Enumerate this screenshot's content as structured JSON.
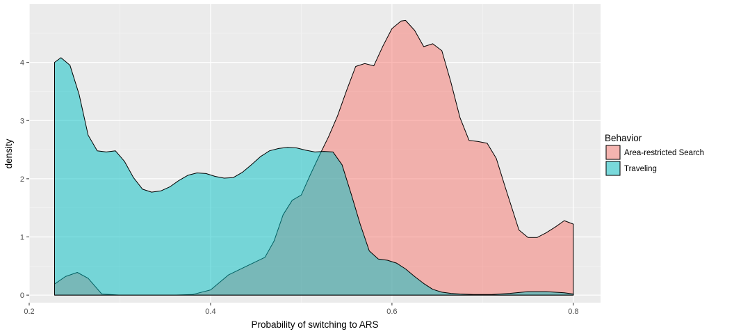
{
  "chart_data": {
    "type": "area",
    "title": "",
    "xlabel": "Probability of switching to ARS",
    "ylabel": "density",
    "xlim": [
      0.2,
      0.83
    ],
    "ylim": [
      -0.13,
      5.0
    ],
    "xticks": [
      0.2,
      0.4,
      0.6,
      0.8
    ],
    "xtick_labels": [
      "0.2",
      "0.4",
      "0.6",
      "0.8"
    ],
    "yticks": [
      0,
      1,
      2,
      3,
      4
    ],
    "ytick_labels": [
      "0",
      "1",
      "2",
      "3",
      "4"
    ],
    "grid": true,
    "background": "#ebebeb",
    "legend": {
      "title": "Behavior",
      "position": "right"
    },
    "series": [
      {
        "name": "Area-restricted Search",
        "color": "#f8766d",
        "opacity": 0.5,
        "x": [
          0.228,
          0.24,
          0.253,
          0.265,
          0.28,
          0.3,
          0.33,
          0.36,
          0.38,
          0.4,
          0.42,
          0.44,
          0.46,
          0.47,
          0.48,
          0.49,
          0.5,
          0.51,
          0.52,
          0.53,
          0.54,
          0.55,
          0.56,
          0.57,
          0.58,
          0.59,
          0.6,
          0.61,
          0.615,
          0.625,
          0.635,
          0.645,
          0.655,
          0.665,
          0.675,
          0.685,
          0.695,
          0.705,
          0.715,
          0.725,
          0.74,
          0.75,
          0.76,
          0.77,
          0.78,
          0.79,
          0.8
        ],
        "y": [
          0.19,
          0.32,
          0.39,
          0.29,
          0.02,
          0.0,
          0.0,
          0.0,
          0.01,
          0.09,
          0.35,
          0.5,
          0.65,
          0.93,
          1.38,
          1.63,
          1.72,
          2.07,
          2.4,
          2.72,
          3.08,
          3.52,
          3.93,
          3.98,
          3.94,
          4.28,
          4.58,
          4.71,
          4.72,
          4.55,
          4.27,
          4.32,
          4.2,
          3.66,
          3.05,
          2.66,
          2.64,
          2.61,
          2.35,
          1.85,
          1.12,
          0.99,
          0.99,
          1.07,
          1.17,
          1.28,
          1.22
        ]
      },
      {
        "name": "Traveling",
        "color": "#00bfc4",
        "opacity": 0.5,
        "x": [
          0.228,
          0.235,
          0.245,
          0.255,
          0.265,
          0.275,
          0.285,
          0.295,
          0.305,
          0.315,
          0.325,
          0.335,
          0.345,
          0.355,
          0.365,
          0.375,
          0.385,
          0.395,
          0.405,
          0.415,
          0.425,
          0.435,
          0.445,
          0.455,
          0.465,
          0.475,
          0.485,
          0.495,
          0.505,
          0.515,
          0.525,
          0.535,
          0.545,
          0.555,
          0.565,
          0.575,
          0.585,
          0.595,
          0.605,
          0.615,
          0.625,
          0.635,
          0.645,
          0.655,
          0.665,
          0.675,
          0.69,
          0.71,
          0.73,
          0.75,
          0.77,
          0.79,
          0.8
        ],
        "y": [
          4.0,
          4.08,
          3.95,
          3.45,
          2.75,
          2.48,
          2.46,
          2.48,
          2.3,
          2.02,
          1.82,
          1.77,
          1.79,
          1.86,
          1.97,
          2.06,
          2.1,
          2.09,
          2.04,
          2.01,
          2.02,
          2.11,
          2.24,
          2.38,
          2.48,
          2.52,
          2.54,
          2.53,
          2.49,
          2.46,
          2.47,
          2.46,
          2.24,
          1.74,
          1.22,
          0.76,
          0.62,
          0.6,
          0.55,
          0.45,
          0.32,
          0.2,
          0.1,
          0.05,
          0.03,
          0.02,
          0.01,
          0.01,
          0.03,
          0.06,
          0.06,
          0.04,
          0.02
        ]
      }
    ]
  }
}
